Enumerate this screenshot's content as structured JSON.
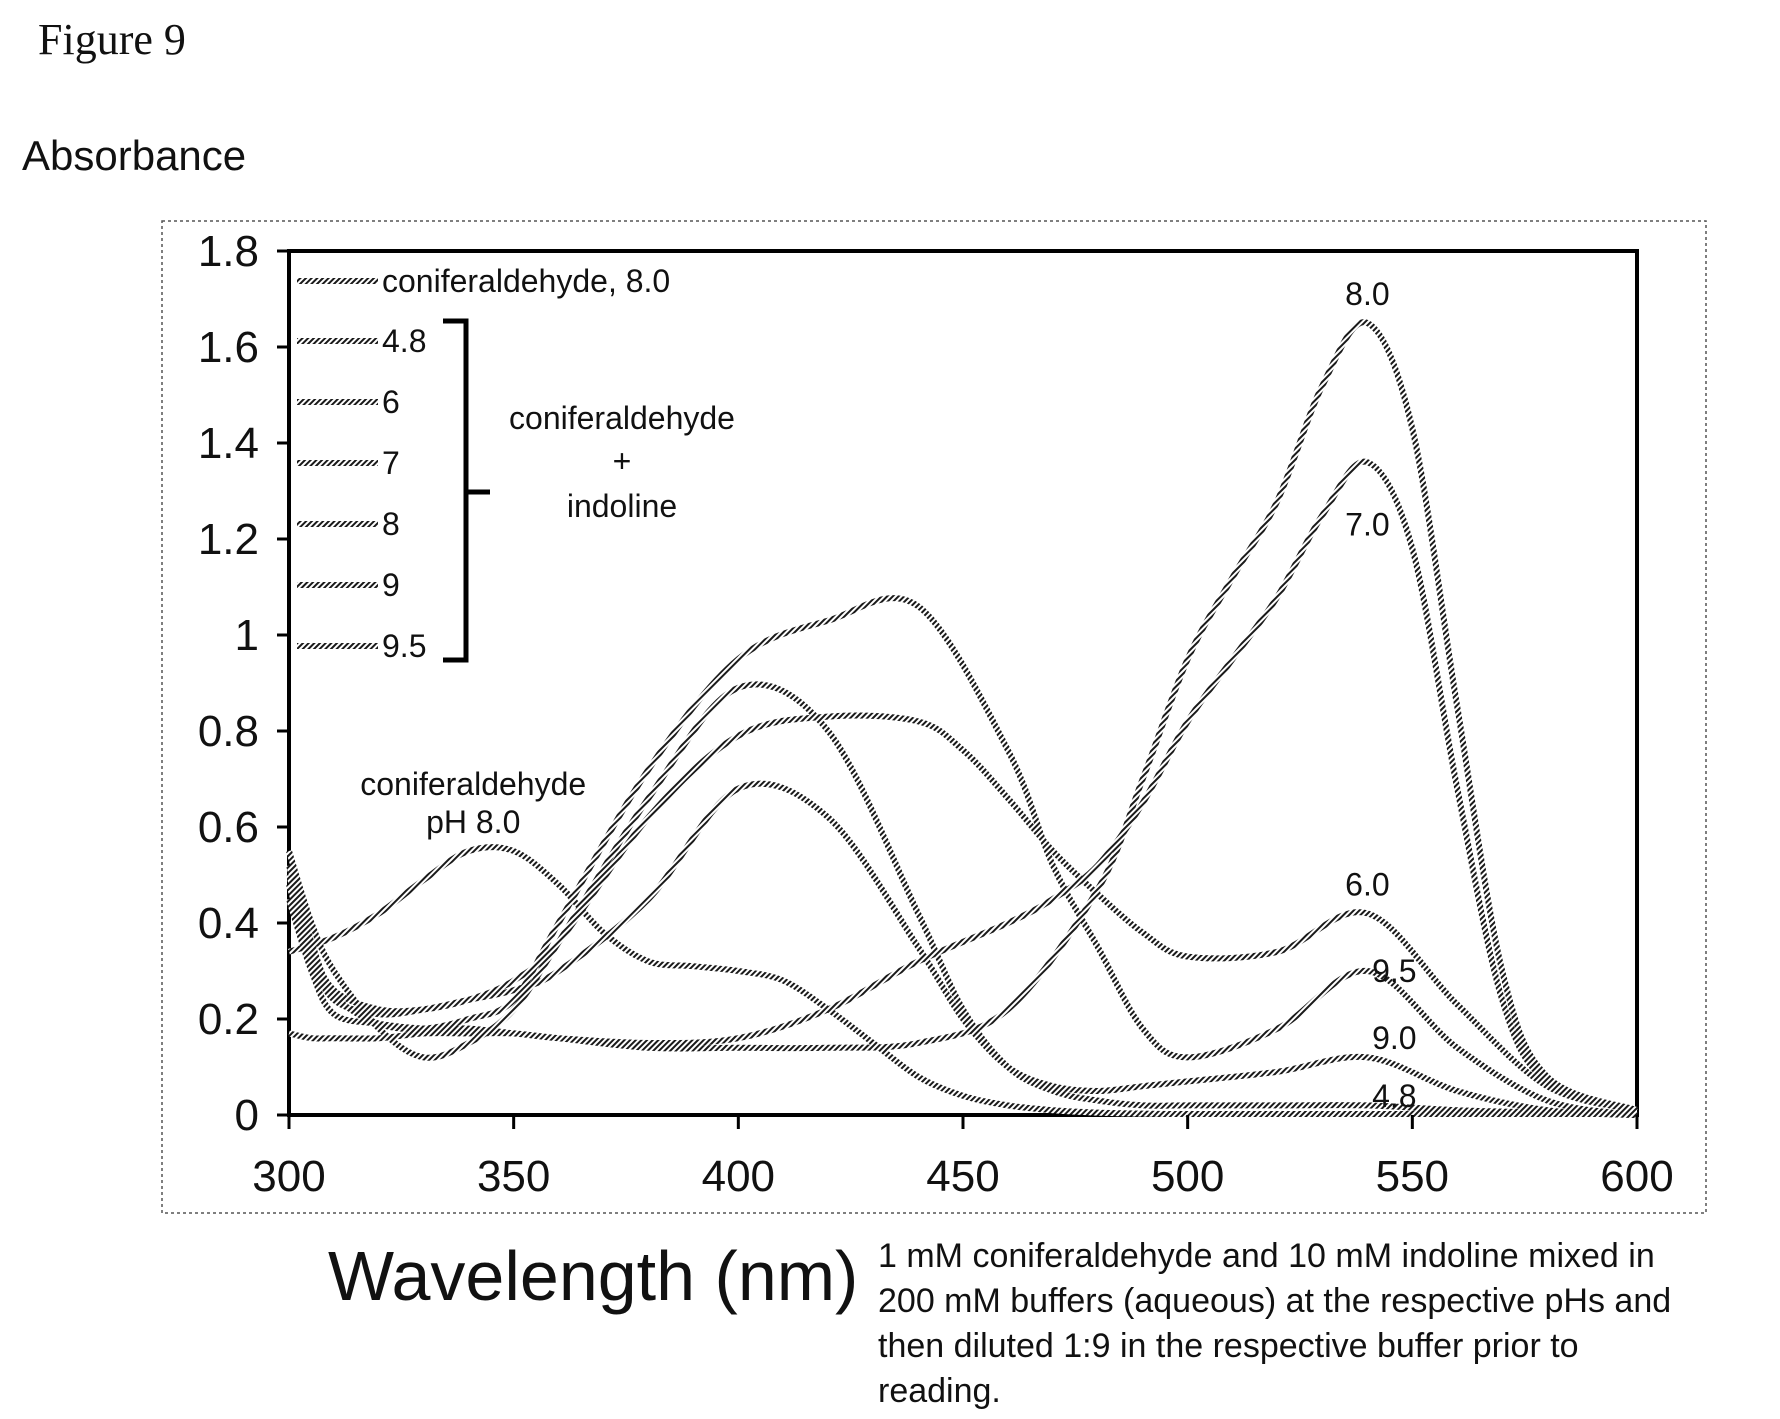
{
  "figure_label": "Figure 9",
  "caption_lines": [
    "1 mM coniferaldehyde and 10 mM indoline mixed in",
    "200 mM buffers (aqueous) at the respective pHs and",
    "then diluted 1:9 in the respective buffer prior to",
    "reading."
  ],
  "chart_data": {
    "type": "line",
    "title": "",
    "xlabel": "Wavelength (nm)",
    "ylabel": "Absorbance",
    "xlim": [
      300,
      600
    ],
    "ylim": [
      0,
      1.8
    ],
    "x_ticks": [
      "300",
      "350",
      "400",
      "450",
      "500",
      "550",
      "600"
    ],
    "y_ticks": [
      "0",
      "0.2",
      "0.4",
      "0.6",
      "0.8",
      "1",
      "1.2",
      "1.4",
      "1.6",
      "1.8"
    ],
    "grid": false,
    "legend_position": "top-left",
    "legend_group_label": [
      "coniferaldehyde",
      "+",
      "indoline"
    ],
    "series": [
      {
        "name": "coniferaldehyde, 8.0",
        "x": [
          300,
          310,
          320,
          330,
          340,
          350,
          360,
          370,
          380,
          390,
          400,
          410,
          420,
          430,
          440,
          450,
          460,
          470,
          480,
          490,
          500,
          520,
          540,
          560,
          580,
          600
        ],
        "y": [
          0.34,
          0.37,
          0.42,
          0.49,
          0.55,
          0.55,
          0.48,
          0.38,
          0.32,
          0.31,
          0.3,
          0.28,
          0.22,
          0.15,
          0.08,
          0.04,
          0.02,
          0.01,
          0.005,
          0.003,
          0.002,
          0.002,
          0.002,
          0.002,
          0.002,
          0.002
        ]
      },
      {
        "name": "4.8",
        "x": [
          300,
          305,
          310,
          320,
          330,
          340,
          350,
          360,
          380,
          400,
          420,
          440,
          450,
          460,
          470,
          480,
          490,
          500,
          520,
          540,
          560,
          580,
          600
        ],
        "y": [
          0.55,
          0.4,
          0.3,
          0.18,
          0.12,
          0.15,
          0.22,
          0.36,
          0.66,
          0.89,
          0.8,
          0.42,
          0.22,
          0.1,
          0.05,
          0.03,
          0.02,
          0.02,
          0.02,
          0.02,
          0.01,
          0.005,
          0.0
        ]
      },
      {
        "name": "6",
        "x": [
          300,
          305,
          310,
          320,
          330,
          340,
          350,
          360,
          380,
          400,
          420,
          440,
          450,
          460,
          470,
          480,
          490,
          500,
          520,
          540,
          560,
          580,
          600
        ],
        "y": [
          0.5,
          0.35,
          0.26,
          0.22,
          0.22,
          0.24,
          0.28,
          0.36,
          0.62,
          0.79,
          0.83,
          0.82,
          0.76,
          0.66,
          0.55,
          0.46,
          0.38,
          0.33,
          0.34,
          0.42,
          0.23,
          0.06,
          0.01
        ]
      },
      {
        "name": "7",
        "x": [
          300,
          305,
          310,
          320,
          330,
          340,
          350,
          360,
          380,
          400,
          420,
          440,
          460,
          470,
          480,
          490,
          500,
          510,
          520,
          530,
          540,
          550,
          560,
          570,
          580,
          600
        ],
        "y": [
          0.17,
          0.16,
          0.16,
          0.16,
          0.17,
          0.17,
          0.17,
          0.16,
          0.15,
          0.16,
          0.22,
          0.32,
          0.4,
          0.45,
          0.52,
          0.65,
          0.82,
          0.95,
          1.08,
          1.25,
          1.36,
          1.18,
          0.68,
          0.24,
          0.07,
          0.01
        ]
      },
      {
        "name": "8",
        "x": [
          300,
          305,
          310,
          320,
          330,
          340,
          350,
          360,
          380,
          400,
          420,
          440,
          460,
          480,
          490,
          500,
          510,
          520,
          530,
          540,
          550,
          560,
          570,
          580,
          600
        ],
        "y": [
          0.45,
          0.3,
          0.21,
          0.19,
          0.18,
          0.18,
          0.17,
          0.16,
          0.14,
          0.14,
          0.14,
          0.15,
          0.22,
          0.47,
          0.7,
          0.95,
          1.12,
          1.28,
          1.52,
          1.65,
          1.43,
          0.85,
          0.3,
          0.08,
          0.01
        ]
      },
      {
        "name": "9",
        "x": [
          300,
          305,
          310,
          320,
          330,
          340,
          350,
          360,
          380,
          400,
          420,
          440,
          450,
          460,
          470,
          480,
          490,
          500,
          520,
          540,
          560,
          580,
          600
        ],
        "y": [
          0.48,
          0.33,
          0.24,
          0.21,
          0.22,
          0.24,
          0.26,
          0.3,
          0.45,
          0.68,
          0.62,
          0.35,
          0.2,
          0.1,
          0.06,
          0.05,
          0.06,
          0.07,
          0.09,
          0.12,
          0.05,
          0.01,
          0.0
        ]
      },
      {
        "name": "9.5",
        "x": [
          300,
          305,
          310,
          320,
          330,
          340,
          350,
          360,
          380,
          400,
          420,
          440,
          460,
          470,
          480,
          490,
          500,
          520,
          540,
          560,
          580,
          600
        ],
        "y": [
          0.52,
          0.36,
          0.25,
          0.19,
          0.18,
          0.2,
          0.24,
          0.4,
          0.72,
          0.95,
          1.03,
          1.06,
          0.76,
          0.52,
          0.35,
          0.18,
          0.12,
          0.18,
          0.3,
          0.14,
          0.03,
          0.0
        ]
      }
    ],
    "annotations": [
      {
        "text": "coniferaldehyde",
        "x": 341,
        "y": 0.69
      },
      {
        "text": "pH 8.0",
        "x": 341,
        "y": 0.61
      },
      {
        "text": "8.0",
        "x": 540,
        "y": 1.71
      },
      {
        "text": "7.0",
        "x": 540,
        "y": 1.23
      },
      {
        "text": "6.0",
        "x": 540,
        "y": 0.48
      },
      {
        "text": "9.5",
        "x": 546,
        "y": 0.3
      },
      {
        "text": "9.0",
        "x": 546,
        "y": 0.16
      },
      {
        "text": "4.8",
        "x": 546,
        "y": 0.04
      }
    ]
  }
}
